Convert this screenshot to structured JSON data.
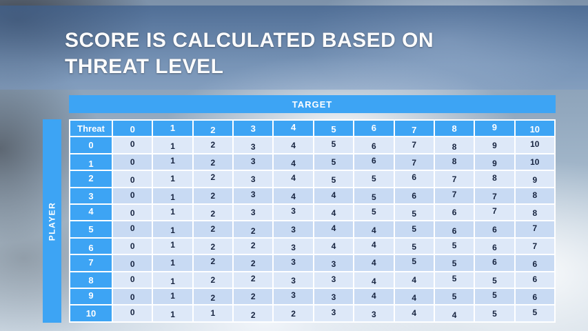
{
  "slide": {
    "title_line1": "SCORE IS CALCULATED BASED ON",
    "title_line2": "THREAT LEVEL"
  },
  "table": {
    "target_label": "TARGET",
    "player_label": "PLAYER",
    "corner_label": "Threat",
    "column_headers": [
      "0",
      "1",
      "2",
      "3",
      "4",
      "5",
      "6",
      "7",
      "8",
      "9",
      "10"
    ],
    "rows": [
      {
        "threat": "0",
        "values": [
          "0",
          "1",
          "2",
          "3",
          "4",
          "5",
          "6",
          "7",
          "8",
          "9",
          "10"
        ]
      },
      {
        "threat": "1",
        "values": [
          "0",
          "1",
          "2",
          "3",
          "4",
          "5",
          "6",
          "7",
          "8",
          "9",
          "10"
        ]
      },
      {
        "threat": "2",
        "values": [
          "0",
          "1",
          "2",
          "3",
          "4",
          "5",
          "5",
          "6",
          "7",
          "8",
          "9"
        ]
      },
      {
        "threat": "3",
        "values": [
          "0",
          "1",
          "2",
          "3",
          "4",
          "4",
          "5",
          "6",
          "7",
          "7",
          "8"
        ]
      },
      {
        "threat": "4",
        "values": [
          "0",
          "1",
          "2",
          "3",
          "3",
          "4",
          "5",
          "5",
          "6",
          "7",
          "8"
        ]
      },
      {
        "threat": "5",
        "values": [
          "0",
          "1",
          "2",
          "2",
          "3",
          "4",
          "4",
          "5",
          "6",
          "6",
          "7"
        ]
      },
      {
        "threat": "6",
        "values": [
          "0",
          "1",
          "2",
          "2",
          "3",
          "4",
          "4",
          "5",
          "5",
          "6",
          "7"
        ]
      },
      {
        "threat": "7",
        "values": [
          "0",
          "1",
          "2",
          "2",
          "3",
          "3",
          "4",
          "5",
          "5",
          "6",
          "6"
        ]
      },
      {
        "threat": "8",
        "values": [
          "0",
          "1",
          "2",
          "2",
          "3",
          "3",
          "4",
          "4",
          "5",
          "5",
          "6"
        ]
      },
      {
        "threat": "9",
        "values": [
          "0",
          "1",
          "2",
          "2",
          "3",
          "3",
          "4",
          "4",
          "5",
          "5",
          "6"
        ]
      },
      {
        "threat": "10",
        "values": [
          "0",
          "1",
          "1",
          "2",
          "2",
          "3",
          "3",
          "4",
          "4",
          "5",
          "5"
        ]
      }
    ]
  },
  "colors": {
    "accent_blue": "#3da4f4",
    "row_light": "#dde8f8",
    "row_dark": "#c8daf3",
    "cell_text": "#16233f"
  }
}
